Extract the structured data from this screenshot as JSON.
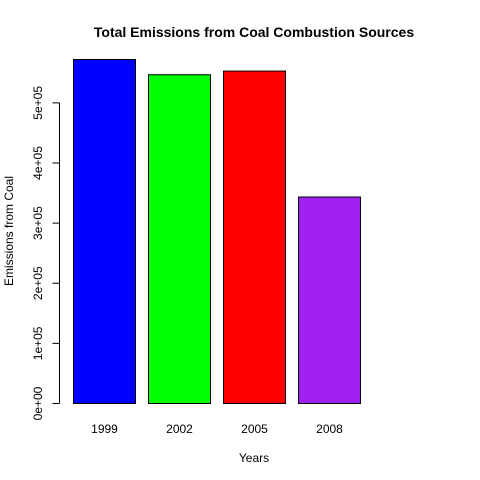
{
  "chart_data": {
    "type": "bar",
    "title": "Total Emissions from Coal Combustion Sources",
    "xlabel": "Years",
    "ylabel": "Emissions from Coal",
    "categories": [
      "1999",
      "2002",
      "2005",
      "2008"
    ],
    "values": [
      572126,
      546789,
      552881,
      343432
    ],
    "colors": [
      "#0000FF",
      "#00FF00",
      "#FF0000",
      "#A020F0"
    ],
    "ylim": [
      0,
      572126
    ],
    "yticks": [
      0,
      100000,
      200000,
      300000,
      400000,
      500000
    ],
    "ytick_labels": [
      "0e+00",
      "1e+05",
      "2e+05",
      "3e+05",
      "4e+05",
      "5e+05"
    ],
    "grid": false,
    "legend": "none"
  }
}
